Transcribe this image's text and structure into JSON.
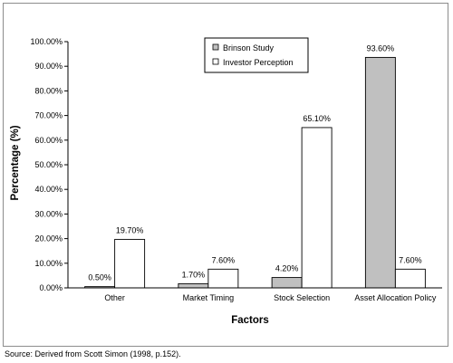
{
  "chart_data": {
    "type": "bar",
    "title": "",
    "xlabel": "Factors",
    "ylabel": "Percentage (%)",
    "ylim": [
      0,
      100
    ],
    "yticks": [
      "0.00%",
      "10.00%",
      "20.00%",
      "30.00%",
      "40.00%",
      "50.00%",
      "60.00%",
      "70.00%",
      "80.00%",
      "90.00%",
      "100.00%"
    ],
    "grid": false,
    "legend_position": "top-center",
    "categories": [
      "Other",
      "Market Timing",
      "Stock Selection",
      "Asset Allocation Policy"
    ],
    "series": [
      {
        "name": "Brinson Study",
        "values": [
          0.5,
          1.7,
          4.2,
          93.6
        ],
        "labels": [
          "0.50%",
          "1.70%",
          "4.20%",
          "93.60%"
        ],
        "color": "#c0c0c0"
      },
      {
        "name": "Investor Perception",
        "values": [
          19.7,
          7.6,
          65.1,
          7.6
        ],
        "labels": [
          "19.70%",
          "7.60%",
          "65.10%",
          "7.60%"
        ],
        "color": "#ffffff"
      }
    ]
  },
  "source_note": "Source: Derived from Scott Simon (1998, p.152)."
}
